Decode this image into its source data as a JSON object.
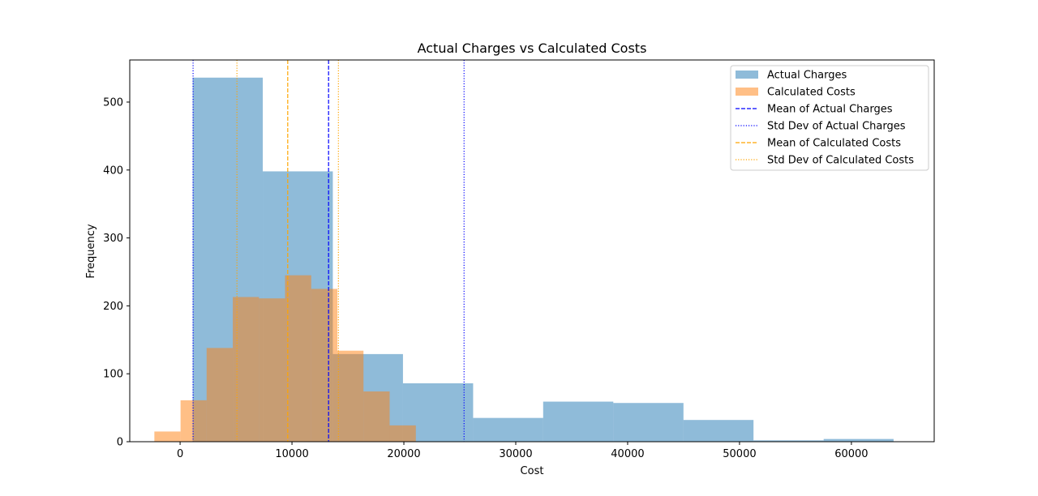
{
  "chart_data": {
    "type": "histogram",
    "title": "Actual Charges vs Calculated Costs",
    "xlabel": "Cost",
    "ylabel": "Frequency",
    "xlim": [
      -4500,
      67400
    ],
    "ylim": [
      0,
      562
    ],
    "xticks": [
      0,
      10000,
      20000,
      30000,
      40000,
      50000,
      60000
    ],
    "yticks": [
      0,
      100,
      200,
      300,
      400,
      500
    ],
    "grid": false,
    "legend_position": "top-right",
    "series": [
      {
        "name": "Actual Charges",
        "color": "#1f77b4",
        "alpha": 0.5,
        "bins": [
          {
            "x0": 1122,
            "x1": 7390,
            "count": 536
          },
          {
            "x0": 7390,
            "x1": 13650,
            "count": 398
          },
          {
            "x0": 13650,
            "x1": 19920,
            "count": 129
          },
          {
            "x0": 19920,
            "x1": 26190,
            "count": 86
          },
          {
            "x0": 26190,
            "x1": 32450,
            "count": 35
          },
          {
            "x0": 32450,
            "x1": 38720,
            "count": 59
          },
          {
            "x0": 38720,
            "x1": 44990,
            "count": 57
          },
          {
            "x0": 44990,
            "x1": 51250,
            "count": 32
          },
          {
            "x0": 51250,
            "x1": 57520,
            "count": 2
          },
          {
            "x0": 57520,
            "x1": 63770,
            "count": 4
          }
        ]
      },
      {
        "name": "Calculated Costs",
        "color": "#ff7f0e",
        "alpha": 0.5,
        "bins": [
          {
            "x0": -2300,
            "x1": 40,
            "count": 15
          },
          {
            "x0": 40,
            "x1": 2370,
            "count": 61
          },
          {
            "x0": 2370,
            "x1": 4710,
            "count": 138
          },
          {
            "x0": 4710,
            "x1": 7050,
            "count": 213
          },
          {
            "x0": 7050,
            "x1": 9380,
            "count": 211
          },
          {
            "x0": 9380,
            "x1": 11720,
            "count": 245
          },
          {
            "x0": 11720,
            "x1": 14060,
            "count": 225
          },
          {
            "x0": 14060,
            "x1": 16390,
            "count": 134
          },
          {
            "x0": 16390,
            "x1": 18730,
            "count": 74
          },
          {
            "x0": 18730,
            "x1": 21070,
            "count": 24
          }
        ]
      }
    ],
    "reference_lines": [
      {
        "name": "Mean of Actual Charges",
        "x": 13270,
        "color": "#0000ff",
        "style": "dashed"
      },
      {
        "name": "Std Dev of Actual Charges",
        "x": [
          1160,
          25380
        ],
        "color": "#0000ff",
        "style": "dotted"
      },
      {
        "name": "Mean of Calculated Costs",
        "x": 9620,
        "color": "#ffa500",
        "style": "dashed"
      },
      {
        "name": "Std Dev of Calculated Costs",
        "x": [
          5080,
          14150
        ],
        "color": "#ffa500",
        "style": "dotted"
      }
    ]
  }
}
